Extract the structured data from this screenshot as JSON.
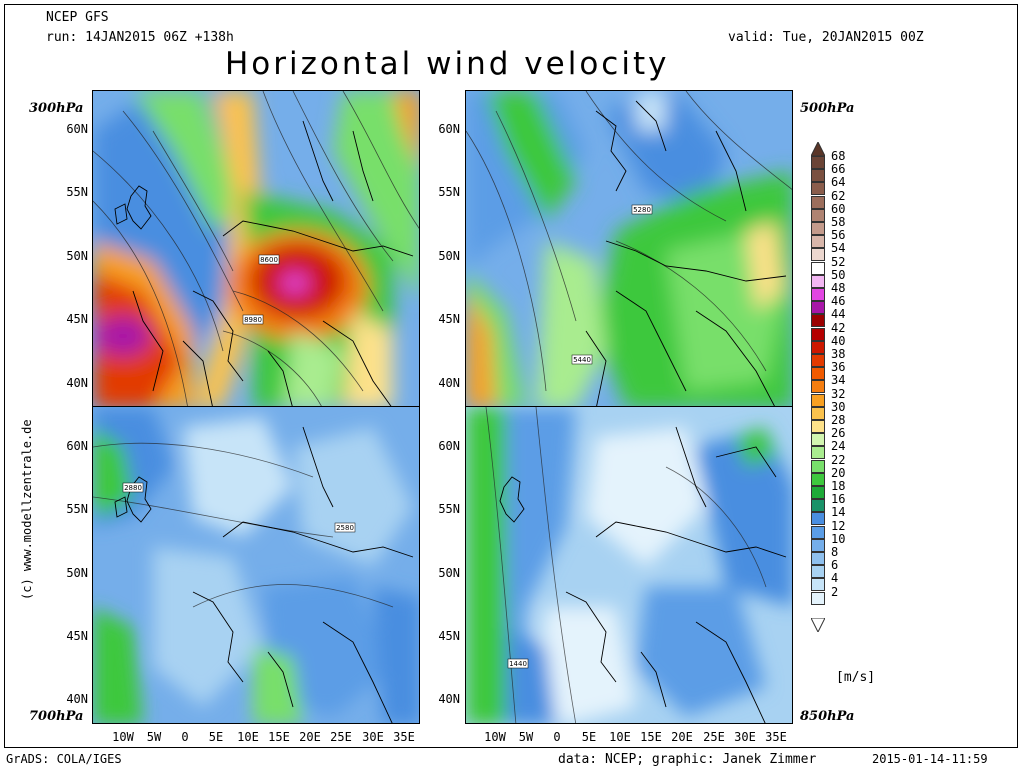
{
  "header": {
    "model": "NCEP GFS",
    "run": "run: 14JAN2015 06Z +138h",
    "valid": "valid: Tue, 20JAN2015 00Z",
    "title": "Horizontal wind velocity"
  },
  "panels": {
    "top_left": {
      "level": "300hPa",
      "contour_labels": [
        "8600",
        "8980"
      ]
    },
    "top_right": {
      "level": "500hPa",
      "contour_labels": [
        "5280",
        "5440"
      ]
    },
    "bottom_left": {
      "level": "700hPa",
      "contour_labels": [
        "2880",
        "2580"
      ]
    },
    "bottom_right": {
      "level": "850hPa",
      "contour_labels": [
        "1440"
      ]
    }
  },
  "lat_labels": [
    "60N",
    "55N",
    "50N",
    "45N",
    "40N"
  ],
  "lon_labels": [
    "10W",
    "5W",
    "0",
    "5E",
    "10E",
    "15E",
    "20E",
    "25E",
    "30E",
    "35E"
  ],
  "colorbar": {
    "unit": "[m/s]",
    "levels": [
      "68",
      "66",
      "64",
      "62",
      "60",
      "58",
      "56",
      "54",
      "52",
      "50",
      "48",
      "46",
      "44",
      "42",
      "40",
      "38",
      "36",
      "34",
      "32",
      "30",
      "28",
      "26",
      "24",
      "22",
      "20",
      "18",
      "16",
      "14",
      "12",
      "10",
      "8",
      "6",
      "4",
      "2"
    ],
    "colors": [
      "#6b4436",
      "#7a5040",
      "#8a5d4c",
      "#9c6e5c",
      "#af8372",
      "#c39a8b",
      "#d8b6aa",
      "#ecd7cf",
      "#ffffff",
      "#f2b6f2",
      "#e246e2",
      "#a816a8",
      "#9b0000",
      "#b40000",
      "#cd1800",
      "#e23a00",
      "#f05a00",
      "#f47d10",
      "#f8a022",
      "#fbc24d",
      "#fde18a",
      "#d2f5b0",
      "#a9ec8f",
      "#78df6b",
      "#3ec83e",
      "#1eaa38",
      "#1a9268",
      "#4a8ee0",
      "#5b9de6",
      "#75aeea",
      "#8fc0ee",
      "#a8d2f2",
      "#c7e4f8",
      "#e4f3fc"
    ]
  },
  "footer": {
    "left": "GrADS: COLA/IGES",
    "center": "data: NCEP; graphic: Janek Zimmer",
    "right": "2015-01-14-11:59"
  },
  "credit": "(c) www.modellzentrale.de"
}
